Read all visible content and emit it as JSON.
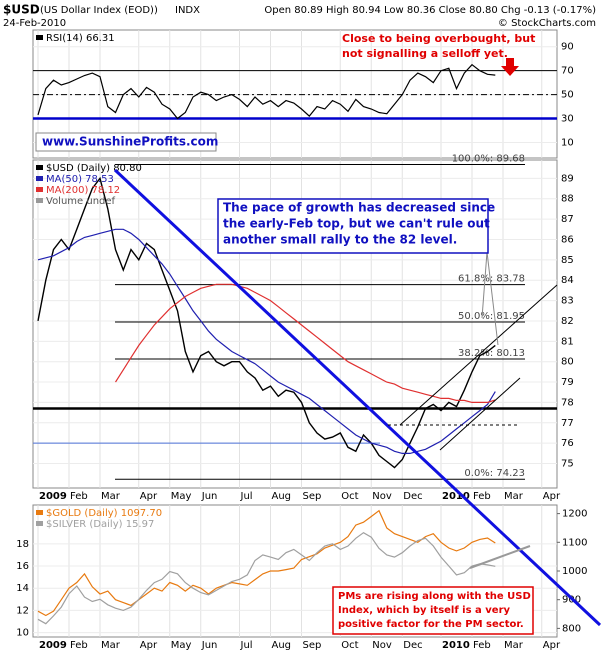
{
  "header": {
    "symbol": "$USD",
    "name": "(US Dollar Index (EOD))",
    "exchange": "INDX",
    "date": "24-Feb-2010",
    "quote": "Open 80.89 High 80.94 Low 80.36 Close 80.80 Chg -0.13 (-0.17%)",
    "copyright": "© StockCharts.com",
    "watermark": "www.SunshineProfits.com"
  },
  "chart_data": [
    {
      "type": "line",
      "ylim": [
        -3,
        104
      ],
      "yticks": [
        10,
        30,
        50,
        70,
        90
      ],
      "series": [
        {
          "name": "RSI(14) 66.31",
          "color": "#000000",
          "values": [
            33,
            55,
            62,
            58,
            60,
            63,
            66,
            68,
            65,
            40,
            35,
            50,
            55,
            48,
            56,
            52,
            42,
            38,
            30,
            35,
            48,
            52,
            50,
            45,
            48,
            50,
            46,
            40,
            48,
            42,
            45,
            40,
            45,
            43,
            38,
            32,
            40,
            38,
            45,
            42,
            36,
            46,
            40,
            38,
            35,
            34,
            42,
            50,
            62,
            68,
            65,
            60,
            70,
            72,
            55,
            68,
            75,
            70,
            67,
            66.31,
            null,
            null,
            null,
            null,
            null,
            null
          ]
        }
      ],
      "hlines": [
        {
          "value": 70,
          "color": "#000000"
        },
        {
          "value": 50,
          "color": "#000000",
          "dash": true
        },
        {
          "value": 30,
          "color": "#0000cc",
          "thick": true
        }
      ],
      "annotation": {
        "lines": [
          "Close to being overbought, but",
          "not signalling a selloff yet."
        ],
        "color": "#e00000"
      }
    },
    {
      "type": "line",
      "ylim": [
        73.8,
        89.9
      ],
      "yticks": [
        75,
        76,
        77,
        78,
        79,
        80,
        81,
        82,
        83,
        84,
        85,
        86,
        87,
        88,
        89
      ],
      "categories": [
        "2009",
        null,
        null,
        null,
        "Feb",
        null,
        null,
        null,
        "Mar",
        null,
        null,
        null,
        null,
        "Apr",
        null,
        null,
        null,
        "May",
        null,
        null,
        null,
        "Jun",
        null,
        null,
        null,
        null,
        "Jul",
        null,
        null,
        null,
        "Aug",
        null,
        null,
        null,
        "Sep",
        null,
        null,
        null,
        null,
        "Oct",
        null,
        null,
        null,
        "Nov",
        null,
        null,
        null,
        "Dec",
        null,
        null,
        null,
        null,
        "2010",
        null,
        null,
        null,
        "Feb",
        null,
        null,
        null,
        "Mar",
        null,
        null,
        null,
        null,
        "Apr"
      ],
      "series": [
        {
          "name": "$USD (Daily) 80.80",
          "color": "#000000",
          "values": [
            82.0,
            84.0,
            85.5,
            86.0,
            85.5,
            86.5,
            87.5,
            88.5,
            89.0,
            87.5,
            85.5,
            84.5,
            85.5,
            85.0,
            85.8,
            85.5,
            84.5,
            83.5,
            82.5,
            80.5,
            79.5,
            80.3,
            80.5,
            80.0,
            79.8,
            80.0,
            80.0,
            79.5,
            79.2,
            78.6,
            78.8,
            78.3,
            78.6,
            78.5,
            78.0,
            77.0,
            76.5,
            76.2,
            76.3,
            76.5,
            75.8,
            75.6,
            76.4,
            76.0,
            75.4,
            75.1,
            74.8,
            75.2,
            76.0,
            76.8,
            77.7,
            77.9,
            77.6,
            78.0,
            77.8,
            78.6,
            79.5,
            80.3,
            80.5,
            80.8,
            null,
            null,
            null,
            null,
            null,
            null
          ]
        },
        {
          "name": "MA(50) 78.53",
          "color": "#2020b0",
          "values": [
            85.0,
            85.1,
            85.2,
            85.4,
            85.6,
            85.9,
            86.1,
            86.2,
            86.3,
            86.4,
            86.5,
            86.5,
            86.3,
            86.0,
            85.6,
            85.2,
            84.8,
            84.3,
            83.7,
            83.1,
            82.5,
            82.0,
            81.5,
            81.1,
            80.8,
            80.5,
            80.3,
            80.1,
            79.9,
            79.6,
            79.3,
            79.0,
            78.8,
            78.6,
            78.4,
            78.2,
            77.9,
            77.6,
            77.3,
            77.0,
            76.7,
            76.4,
            76.2,
            76.0,
            75.9,
            75.8,
            75.6,
            75.5,
            75.5,
            75.6,
            75.7,
            75.9,
            76.1,
            76.4,
            76.7,
            77.0,
            77.3,
            77.6,
            77.9,
            78.53,
            null,
            null,
            null,
            null,
            null,
            null
          ]
        },
        {
          "name": "MA(200) 78.12",
          "color": "#e03030",
          "values": [
            null,
            null,
            null,
            null,
            null,
            null,
            null,
            null,
            null,
            null,
            79.0,
            79.6,
            80.2,
            80.8,
            81.3,
            81.8,
            82.2,
            82.6,
            82.9,
            83.2,
            83.4,
            83.6,
            83.7,
            83.8,
            83.8,
            83.8,
            83.7,
            83.6,
            83.4,
            83.2,
            83.0,
            82.7,
            82.4,
            82.1,
            81.8,
            81.5,
            81.2,
            80.9,
            80.6,
            80.3,
            80.0,
            79.8,
            79.6,
            79.4,
            79.2,
            79.0,
            78.9,
            78.7,
            78.6,
            78.5,
            78.4,
            78.3,
            78.2,
            78.2,
            78.1,
            78.1,
            78.0,
            78.0,
            78.0,
            78.12,
            null,
            null,
            null,
            null,
            null,
            null
          ]
        }
      ],
      "legend_extra": "Volume undef",
      "fib_levels": [
        {
          "label": "100.0%: 89.68",
          "value": 89.68
        },
        {
          "label": "61.8%: 83.78",
          "value": 83.78
        },
        {
          "label": "50.0%: 81.95",
          "value": 81.95
        },
        {
          "label": "38.2%: 80.13",
          "value": 80.13
        },
        {
          "label": "0.0%: 74.23",
          "value": 74.23
        }
      ],
      "hlines": [
        {
          "value": 77.7,
          "color": "#000000",
          "thick": true
        },
        {
          "value": 76.0,
          "color": "#4a6fd6"
        }
      ],
      "annotation": {
        "lines": [
          "The pace of growth has decreased since",
          "the early-Feb top, but we can't rule out",
          "another small rally to the 82 level."
        ],
        "color": "#1010c0"
      }
    },
    {
      "type": "line",
      "ylim": [
        9.6,
        21.5
      ],
      "yticks": [
        10,
        12,
        14,
        16,
        18
      ],
      "y2lim": [
        770,
        1230
      ],
      "y2ticks": [
        800,
        900,
        1000,
        1100,
        1200
      ],
      "categories": [
        "2009",
        null,
        null,
        null,
        "Feb",
        null,
        null,
        null,
        "Mar",
        null,
        null,
        null,
        null,
        "Apr",
        null,
        null,
        null,
        "May",
        null,
        null,
        null,
        "Jun",
        null,
        null,
        null,
        null,
        "Jul",
        null,
        null,
        null,
        "Aug",
        null,
        null,
        null,
        "Sep",
        null,
        null,
        null,
        null,
        "Oct",
        null,
        null,
        null,
        "Nov",
        null,
        null,
        null,
        "Dec",
        null,
        null,
        null,
        null,
        "2010",
        null,
        null,
        null,
        "Feb",
        null,
        null,
        null,
        "Mar",
        null,
        null,
        null,
        null,
        "Apr"
      ],
      "series": [
        {
          "name": "$GOLD (Daily) 1097.70",
          "color": "#e87a10",
          "axis": "y2",
          "values": [
            860,
            845,
            860,
            900,
            940,
            960,
            990,
            945,
            920,
            930,
            900,
            890,
            880,
            900,
            920,
            940,
            930,
            960,
            950,
            930,
            950,
            940,
            920,
            940,
            950,
            960,
            955,
            950,
            970,
            990,
            1000,
            1000,
            1005,
            1010,
            1040,
            1050,
            1060,
            1080,
            1090,
            1100,
            1120,
            1160,
            1170,
            1190,
            1210,
            1150,
            1130,
            1120,
            1110,
            1100,
            1120,
            1130,
            1100,
            1080,
            1070,
            1080,
            1100,
            1110,
            1115,
            1097.7,
            null,
            null,
            null,
            null,
            null,
            null
          ]
        },
        {
          "name": "$SILVER (Daily) 15.97",
          "color": "#a0a0a0",
          "values": [
            11.2,
            10.8,
            11.5,
            12.3,
            13.5,
            14.2,
            13.2,
            12.8,
            13.0,
            12.5,
            12.2,
            12.0,
            12.3,
            13.0,
            13.8,
            14.5,
            14.8,
            15.5,
            15.3,
            14.5,
            14.0,
            13.6,
            13.4,
            13.8,
            14.2,
            14.6,
            14.8,
            15.2,
            16.5,
            17.0,
            16.8,
            16.6,
            17.2,
            17.5,
            17.0,
            16.5,
            17.2,
            17.8,
            18.0,
            17.5,
            17.8,
            18.5,
            19.0,
            18.6,
            17.6,
            17.0,
            16.8,
            17.2,
            17.8,
            18.3,
            18.5,
            17.8,
            16.8,
            16.0,
            15.2,
            15.4,
            16.0,
            16.2,
            16.1,
            15.97,
            null,
            null,
            null,
            null,
            null,
            null
          ]
        }
      ],
      "annotation": {
        "lines": [
          "PMs are rising along with the USD",
          "Index, which by itself is a very",
          "positive factor for the PM sector."
        ],
        "color": "#e00000"
      }
    }
  ]
}
